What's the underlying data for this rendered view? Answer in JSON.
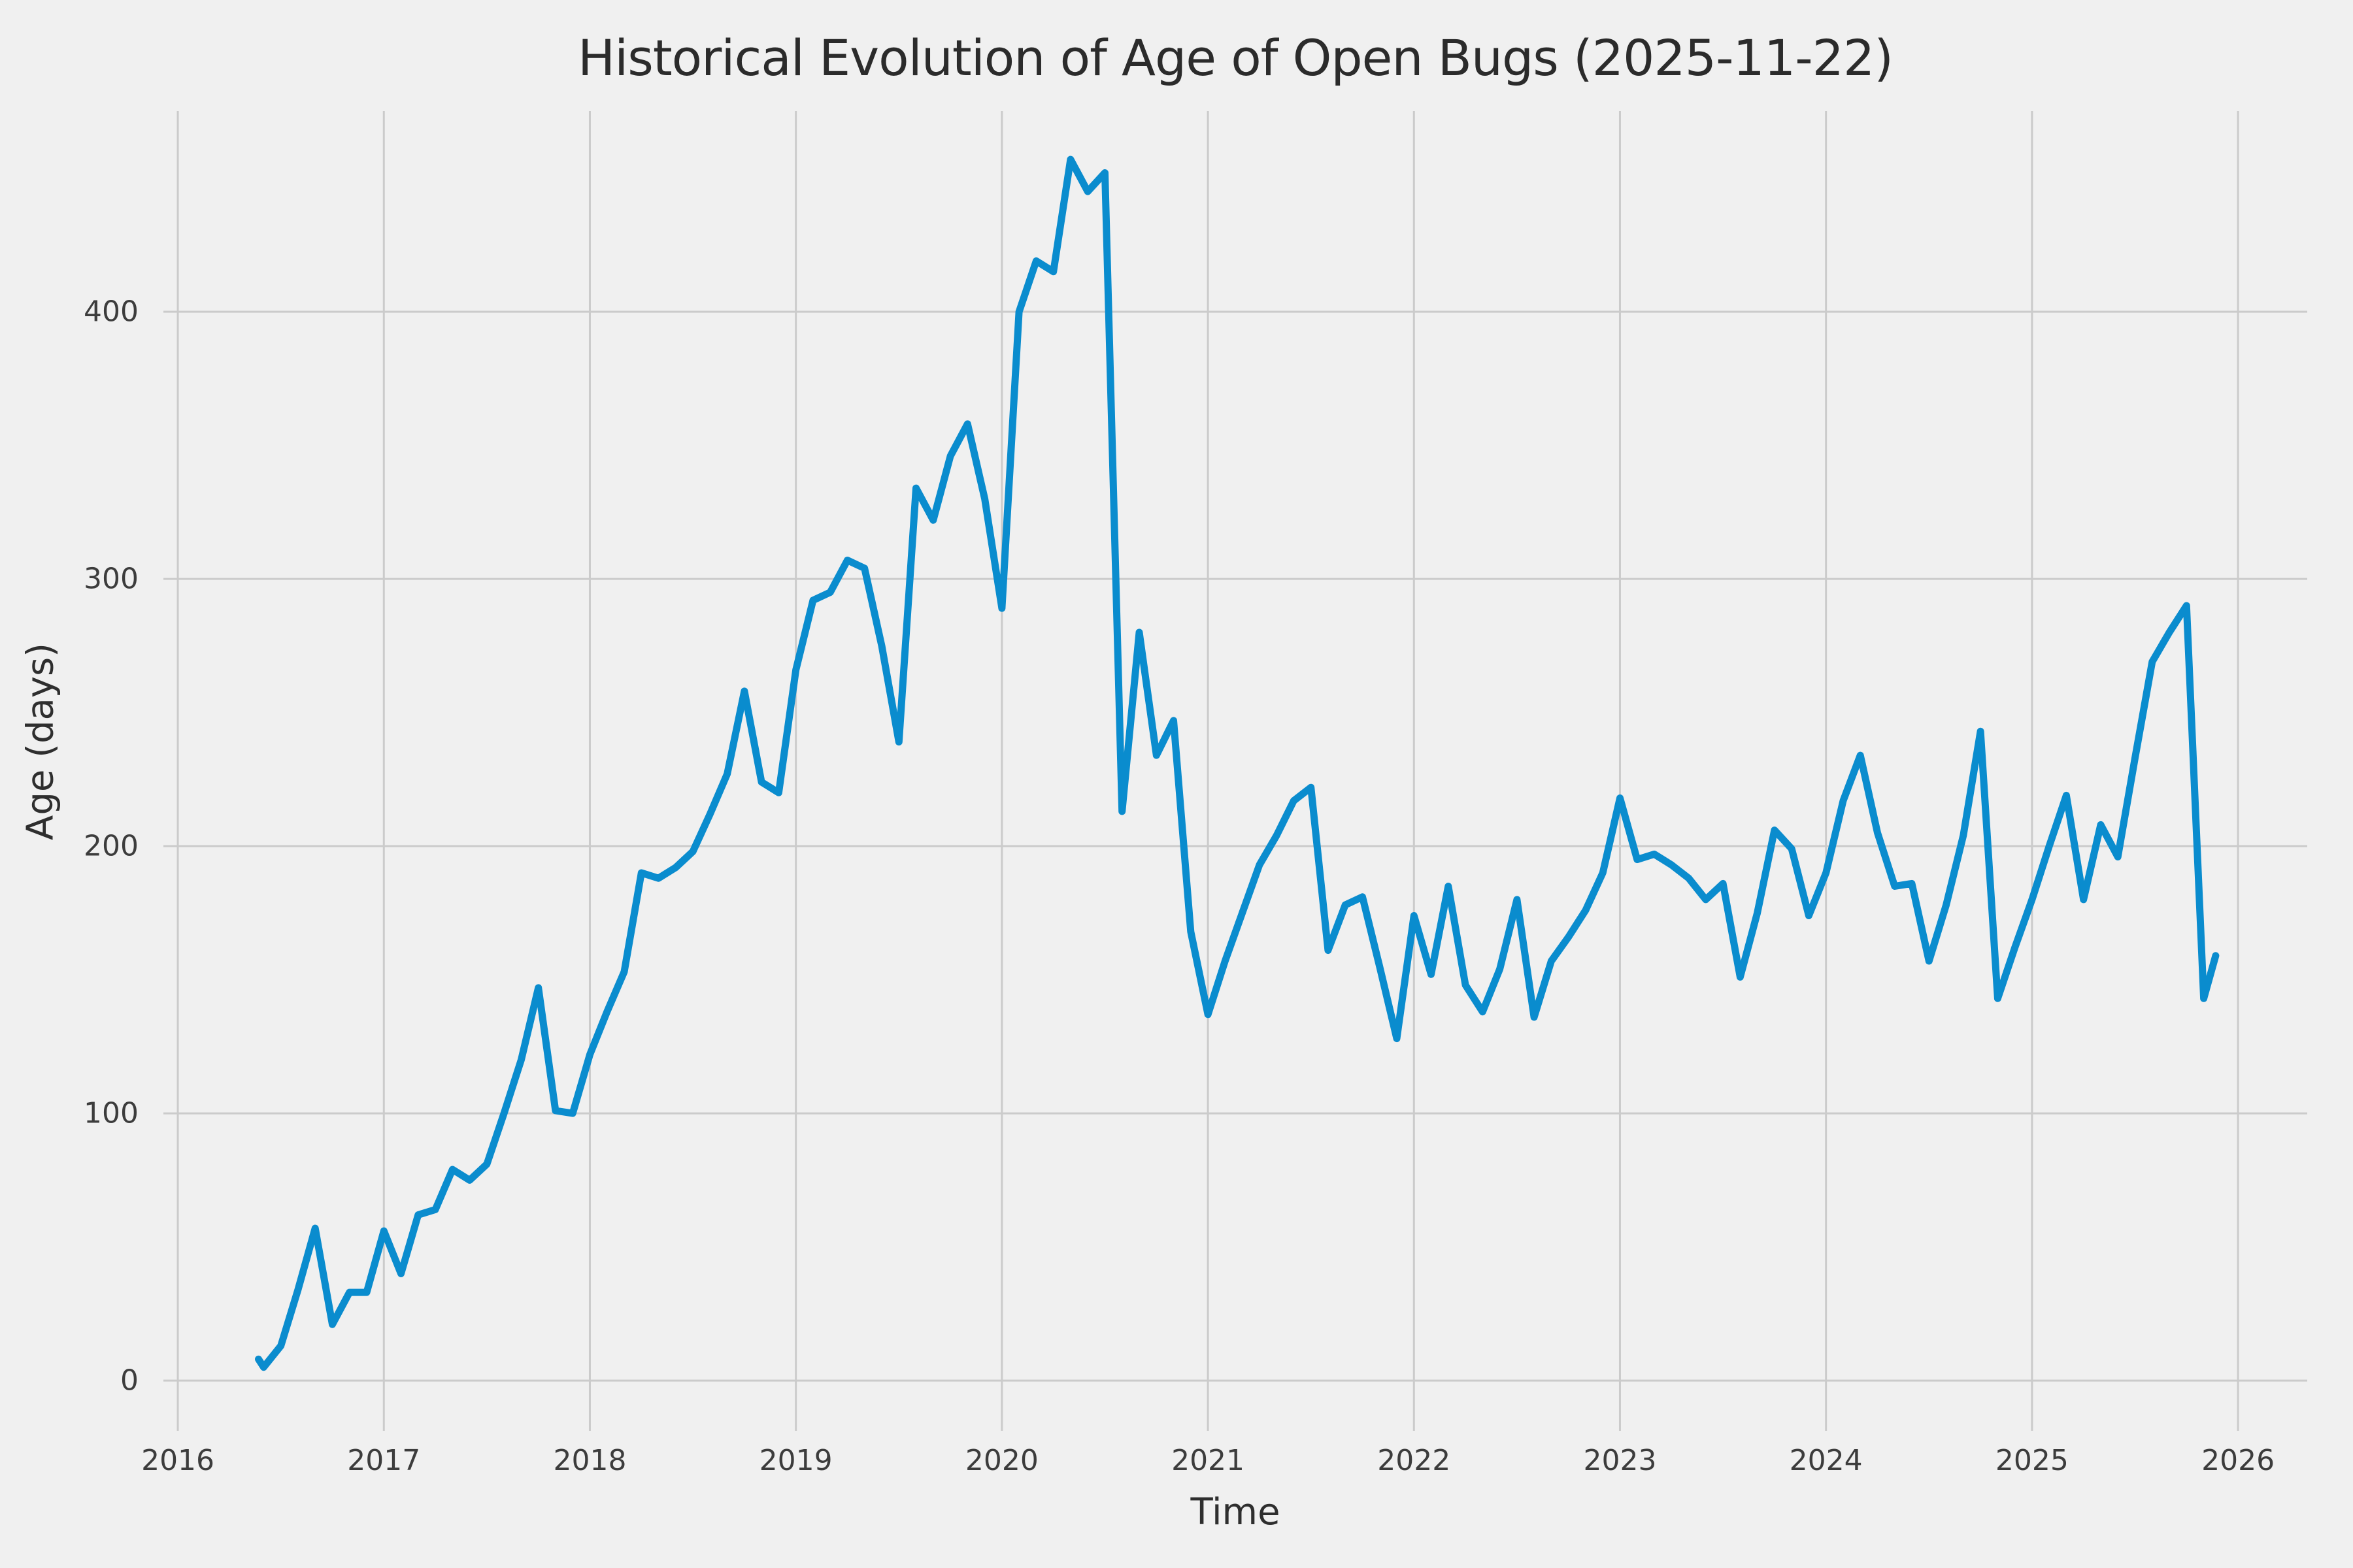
{
  "figure": {
    "title": "Historical Evolution of Age of Open Bugs (2025-11-22)",
    "xlabel": "Time",
    "ylabel": "Age (days)"
  },
  "chart_data": {
    "type": "line",
    "title": "Historical Evolution of Age of Open Bugs (2025-11-22)",
    "xlabel": "Time",
    "ylabel": "Age (days)",
    "grid": true,
    "legend_position": "none",
    "xlim": [
      2015.93,
      2026.336
    ],
    "ylim": [
      -18.8,
      475.1
    ],
    "x_ticks": [
      {
        "label": "2016",
        "year": 2016
      },
      {
        "label": "2017",
        "year": 2017
      },
      {
        "label": "2018",
        "year": 2018
      },
      {
        "label": "2019",
        "year": 2019
      },
      {
        "label": "2020",
        "year": 2020
      },
      {
        "label": "2021",
        "year": 2021
      },
      {
        "label": "2022",
        "year": 2022
      },
      {
        "label": "2023",
        "year": 2023
      },
      {
        "label": "2024",
        "year": 2024
      },
      {
        "label": "2025",
        "year": 2025
      },
      {
        "label": "2026",
        "year": 2026
      }
    ],
    "y_ticks": [
      {
        "label": "0",
        "value": 0
      },
      {
        "label": "100",
        "value": 100
      },
      {
        "label": "200",
        "value": 200
      },
      {
        "label": "300",
        "value": 300
      },
      {
        "label": "400",
        "value": 400
      }
    ],
    "colors": {
      "background": "#f0f0f0",
      "grid": "#cbcbcb",
      "line": "#0a8cce",
      "title_text": "#2b2b2b",
      "tick_text": "#3c3c3c"
    },
    "series": [
      {
        "name": "age-of-open-bugs",
        "points": [
          {
            "x": "2016-05-22",
            "y": 8
          },
          {
            "x": "2016-06",
            "y": 5
          },
          {
            "x": "2016-07",
            "y": 13
          },
          {
            "x": "2016-08",
            "y": 34
          },
          {
            "x": "2016-09",
            "y": 57
          },
          {
            "x": "2016-10",
            "y": 21
          },
          {
            "x": "2016-11",
            "y": 33
          },
          {
            "x": "2016-12",
            "y": 33
          },
          {
            "x": "2017-01",
            "y": 56
          },
          {
            "x": "2017-02",
            "y": 40
          },
          {
            "x": "2017-03",
            "y": 62
          },
          {
            "x": "2017-04",
            "y": 64
          },
          {
            "x": "2017-05",
            "y": 79
          },
          {
            "x": "2017-06",
            "y": 75
          },
          {
            "x": "2017-07",
            "y": 81
          },
          {
            "x": "2017-08",
            "y": 100
          },
          {
            "x": "2017-09",
            "y": 120
          },
          {
            "x": "2017-10",
            "y": 147
          },
          {
            "x": "2017-11",
            "y": 101
          },
          {
            "x": "2017-12",
            "y": 100
          },
          {
            "x": "2018-01",
            "y": 122
          },
          {
            "x": "2018-02",
            "y": 138
          },
          {
            "x": "2018-03",
            "y": 153
          },
          {
            "x": "2018-04",
            "y": 190
          },
          {
            "x": "2018-05",
            "y": 188
          },
          {
            "x": "2018-06",
            "y": 192
          },
          {
            "x": "2018-07",
            "y": 198
          },
          {
            "x": "2018-08",
            "y": 212
          },
          {
            "x": "2018-09",
            "y": 227
          },
          {
            "x": "2018-10",
            "y": 258
          },
          {
            "x": "2018-11",
            "y": 224
          },
          {
            "x": "2018-12",
            "y": 220
          },
          {
            "x": "2019-01",
            "y": 266
          },
          {
            "x": "2019-02",
            "y": 292
          },
          {
            "x": "2019-03",
            "y": 295
          },
          {
            "x": "2019-04",
            "y": 307
          },
          {
            "x": "2019-05",
            "y": 304
          },
          {
            "x": "2019-06",
            "y": 275
          },
          {
            "x": "2019-07",
            "y": 239
          },
          {
            "x": "2019-08",
            "y": 334
          },
          {
            "x": "2019-09",
            "y": 322
          },
          {
            "x": "2019-10",
            "y": 346
          },
          {
            "x": "2019-11",
            "y": 358
          },
          {
            "x": "2019-12",
            "y": 330
          },
          {
            "x": "2020-01",
            "y": 289
          },
          {
            "x": "2020-02",
            "y": 400
          },
          {
            "x": "2020-03",
            "y": 419
          },
          {
            "x": "2020-04",
            "y": 415
          },
          {
            "x": "2020-05",
            "y": 457
          },
          {
            "x": "2020-06",
            "y": 445
          },
          {
            "x": "2020-07",
            "y": 452
          },
          {
            "x": "2020-08",
            "y": 213
          },
          {
            "x": "2020-09",
            "y": 280
          },
          {
            "x": "2020-10",
            "y": 234
          },
          {
            "x": "2020-11",
            "y": 247
          },
          {
            "x": "2020-12",
            "y": 168
          },
          {
            "x": "2021-01",
            "y": 137
          },
          {
            "x": "2021-02",
            "y": 157
          },
          {
            "x": "2021-03",
            "y": 175
          },
          {
            "x": "2021-04",
            "y": 193
          },
          {
            "x": "2021-05",
            "y": 204
          },
          {
            "x": "2021-06",
            "y": 217
          },
          {
            "x": "2021-07",
            "y": 222
          },
          {
            "x": "2021-08",
            "y": 161
          },
          {
            "x": "2021-09",
            "y": 178
          },
          {
            "x": "2021-10",
            "y": 181
          },
          {
            "x": "2021-11",
            "y": 155
          },
          {
            "x": "2021-12",
            "y": 128
          },
          {
            "x": "2022-01",
            "y": 174
          },
          {
            "x": "2022-02",
            "y": 152
          },
          {
            "x": "2022-03",
            "y": 185
          },
          {
            "x": "2022-04",
            "y": 148
          },
          {
            "x": "2022-05",
            "y": 138
          },
          {
            "x": "2022-06",
            "y": 154
          },
          {
            "x": "2022-07",
            "y": 180
          },
          {
            "x": "2022-08",
            "y": 136
          },
          {
            "x": "2022-09",
            "y": 157
          },
          {
            "x": "2022-10",
            "y": 166
          },
          {
            "x": "2022-11",
            "y": 176
          },
          {
            "x": "2022-12",
            "y": 190
          },
          {
            "x": "2023-01",
            "y": 218
          },
          {
            "x": "2023-02",
            "y": 195
          },
          {
            "x": "2023-03",
            "y": 197
          },
          {
            "x": "2023-04",
            "y": 193
          },
          {
            "x": "2023-05",
            "y": 188
          },
          {
            "x": "2023-06",
            "y": 180
          },
          {
            "x": "2023-07",
            "y": 186
          },
          {
            "x": "2023-08",
            "y": 151
          },
          {
            "x": "2023-09",
            "y": 175
          },
          {
            "x": "2023-10",
            "y": 206
          },
          {
            "x": "2023-11",
            "y": 199
          },
          {
            "x": "2023-12",
            "y": 174
          },
          {
            "x": "2024-01",
            "y": 190
          },
          {
            "x": "2024-02",
            "y": 217
          },
          {
            "x": "2024-03",
            "y": 234
          },
          {
            "x": "2024-04",
            "y": 205
          },
          {
            "x": "2024-05",
            "y": 185
          },
          {
            "x": "2024-06",
            "y": 186
          },
          {
            "x": "2024-07",
            "y": 157
          },
          {
            "x": "2024-08",
            "y": 178
          },
          {
            "x": "2024-09",
            "y": 204
          },
          {
            "x": "2024-10",
            "y": 243
          },
          {
            "x": "2024-11",
            "y": 143
          },
          {
            "x": "2024-12",
            "y": 162
          },
          {
            "x": "2025-01",
            "y": 180
          },
          {
            "x": "2025-02",
            "y": 200
          },
          {
            "x": "2025-03",
            "y": 219
          },
          {
            "x": "2025-04",
            "y": 180
          },
          {
            "x": "2025-05",
            "y": 208
          },
          {
            "x": "2025-06",
            "y": 196
          },
          {
            "x": "2025-07",
            "y": 233
          },
          {
            "x": "2025-08",
            "y": 269
          },
          {
            "x": "2025-09",
            "y": 280
          },
          {
            "x": "2025-10",
            "y": 290
          },
          {
            "x": "2025-11",
            "y": 143
          },
          {
            "x": "2025-11-22",
            "y": 159
          }
        ]
      }
    ]
  }
}
